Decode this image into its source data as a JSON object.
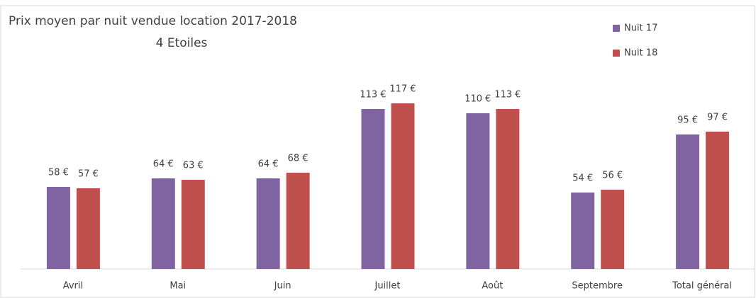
{
  "chart_data": {
    "type": "bar",
    "title": "Prix moyen par nuit vendue location 2017-2018",
    "subtitle": "4 Etoiles",
    "categories": [
      "Avril",
      "Mai",
      "Juin",
      "Juillet",
      "Août",
      "Septembre",
      "Total général"
    ],
    "series": [
      {
        "name": "Nuit 17",
        "color": "#8064a2",
        "values": [
          58,
          64,
          64,
          113,
          110,
          54,
          95
        ],
        "value_labels": [
          "58 €",
          "64 €",
          "64 €",
          "113 €",
          "110 €",
          "54 €",
          "95 €"
        ]
      },
      {
        "name": "Nuit 18",
        "color": "#c0504d",
        "values": [
          57,
          63,
          68,
          117,
          113,
          56,
          97
        ],
        "value_labels": [
          "57 €",
          "63 €",
          "68 €",
          "117 €",
          "113 €",
          "56 €",
          "97 €"
        ]
      }
    ],
    "ylim": [
      0,
      140
    ],
    "legend": "top-right"
  }
}
